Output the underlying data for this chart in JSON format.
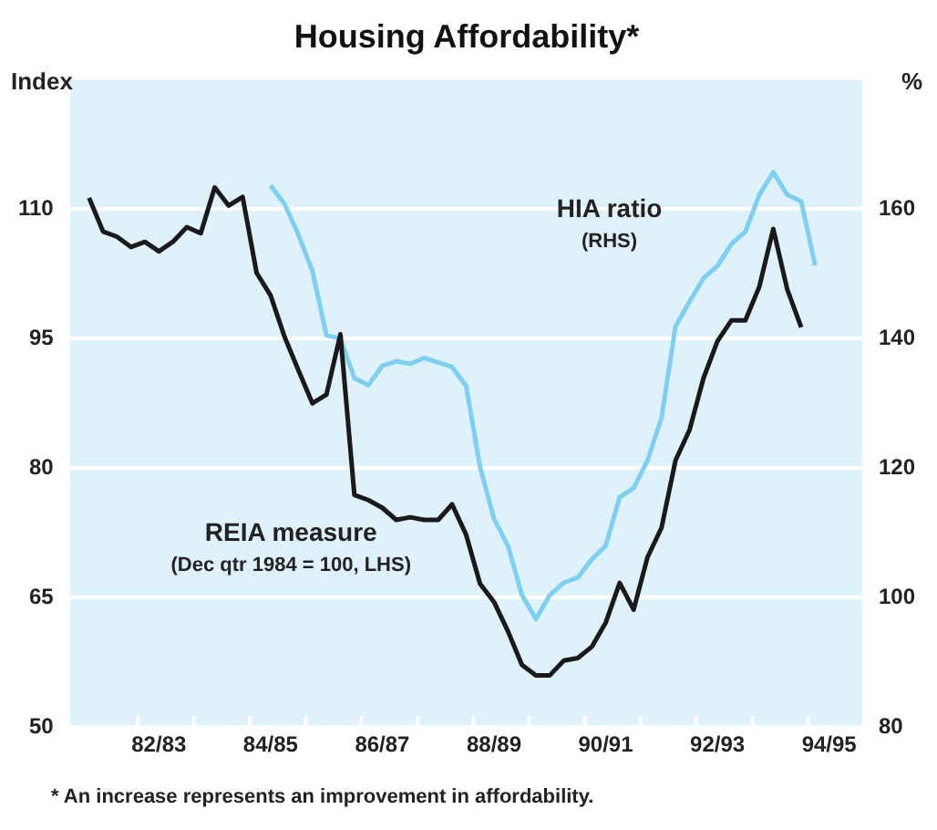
{
  "chart_data": {
    "type": "line",
    "title": "Housing Affordability*",
    "ylabel": "Index",
    "y2label": "%",
    "categories": [
      null,
      null,
      null,
      null,
      null,
      null,
      "82/83",
      null,
      null,
      null,
      null,
      null,
      null,
      null,
      "84/85",
      null,
      null,
      null,
      null,
      null,
      null,
      null,
      "86/87",
      null,
      null,
      null,
      null,
      null,
      null,
      null,
      "88/89",
      null,
      null,
      null,
      null,
      null,
      null,
      null,
      "90/91",
      null,
      null,
      null,
      null,
      null,
      null,
      null,
      "92/93",
      null,
      null,
      null,
      null,
      null,
      null,
      null,
      "94/95",
      null,
      null
    ],
    "series": [
      {
        "name": "REIA measure",
        "color": "#1a1a1a",
        "values": [
          null,
          111.3,
          107.4,
          106.8,
          105.6,
          106.2,
          105.1,
          106.2,
          107.9,
          107.2,
          112.5,
          110.4,
          111.4,
          102.6,
          100.0,
          95.2,
          91.3,
          87.5,
          88.5,
          95.5,
          76.9,
          76.3,
          75.4,
          74.0,
          74.3,
          74.0,
          74.0,
          75.8,
          72.3,
          66.6,
          64.5,
          61.1,
          57.2,
          56.0,
          56.0,
          57.7,
          58.0,
          59.3,
          62.1,
          66.7,
          63.6,
          69.7,
          73.1,
          80.9,
          84.4,
          90.4,
          94.7,
          97.1,
          97.1,
          101.0,
          107.7,
          100.7,
          96.3,
          null,
          null,
          null,
          null
        ]
      },
      {
        "name": "HIA ratio",
        "color": "#7fd0f0",
        "axis": "y2",
        "values": [
          null,
          null,
          null,
          null,
          null,
          null,
          null,
          null,
          null,
          null,
          null,
          null,
          null,
          null,
          163.6,
          160.8,
          156.0,
          150.4,
          140.5,
          140.0,
          133.9,
          132.8,
          135.8,
          136.5,
          136.1,
          137.0,
          136.3,
          135.6,
          132.7,
          120.2,
          112.2,
          108.0,
          100.4,
          96.7,
          100.4,
          102.3,
          103.1,
          105.9,
          108.0,
          115.5,
          116.9,
          121.2,
          127.8,
          141.9,
          145.7,
          149.3,
          151.2,
          154.6,
          156.5,
          162.2,
          165.7,
          162.2,
          161.2,
          151.3,
          null,
          null,
          null
        ]
      }
    ],
    "ylim": [
      50,
      125
    ],
    "yticks": [
      50,
      65,
      80,
      95,
      110
    ],
    "y2lim": [
      80,
      180
    ],
    "y2ticks": [
      80,
      100,
      120,
      140,
      160
    ],
    "grid": "y",
    "legend": false,
    "annotations": [
      "(Dec qtr 1984 = 100, LHS)",
      "(RHS)",
      "* An increase represents an improvement in affordability."
    ]
  }
}
